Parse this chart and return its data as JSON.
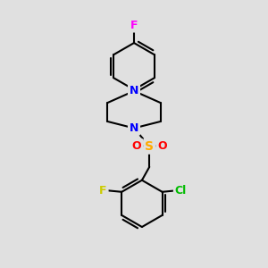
{
  "background_color": "#e0e0e0",
  "bond_color": "#000000",
  "bond_width": 1.5,
  "atom_colors": {
    "F_top": "#ff00ff",
    "F_left": "#cccc00",
    "Cl": "#00bb00",
    "N": "#0000ff",
    "S": "#ffaa00",
    "O": "#ff0000",
    "C": "#000000"
  },
  "font_size_atom": 9
}
